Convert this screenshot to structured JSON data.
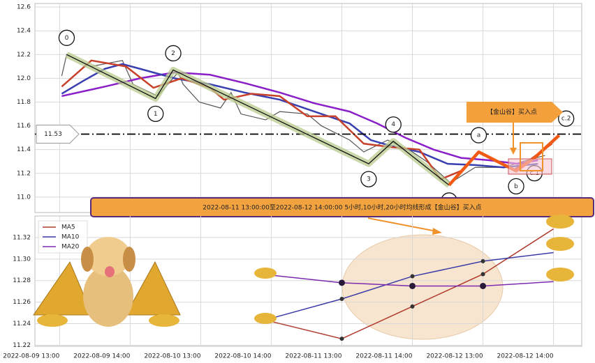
{
  "chart_data": [
    {
      "type": "line",
      "xlim": [
        -0.35,
        7.4
      ],
      "xticks": [
        0,
        1,
        2,
        3,
        4,
        5,
        6,
        7
      ],
      "ylim": [
        10.87,
        12.63
      ],
      "yticks": [
        {
          "value": 11,
          "label": "11.0"
        },
        11.2,
        11.4,
        11.6,
        11.8,
        {
          "value": 12,
          "label": "12.0"
        },
        12.2,
        12.4,
        12.6
      ],
      "grid": true,
      "series": [
        {
          "color": "#555555",
          "width": 1.2,
          "x": [
            0.03,
            0.1,
            0.45,
            0.89,
            1.04,
            1.39,
            1.68,
            1.75,
            1.98,
            2.28,
            2.43,
            2.57,
            2.92,
            3.12,
            3.51,
            3.71,
            4.11,
            4.31,
            4.65,
            5.0,
            5.2,
            5.54,
            5.89,
            6.29,
            6.68,
            6.88
          ],
          "values": [
            12.02,
            12.2,
            12.1,
            12.15,
            11.95,
            11.85,
            12.05,
            11.95,
            11.8,
            11.75,
            11.88,
            11.7,
            11.65,
            11.72,
            11.7,
            11.6,
            11.48,
            11.38,
            11.48,
            11.38,
            11.3,
            11.12,
            11.25,
            11.25,
            11.32,
            11.35
          ]
        },
        {
          "color": "#8a1fc8",
          "width": 2.5,
          "x": [
            0.03,
            0.64,
            1.14,
            1.63,
            2.13,
            2.62,
            3.12,
            3.61,
            4.11,
            4.5,
            4.9,
            5.3,
            5.69,
            6.09,
            6.49,
            6.78
          ],
          "values": [
            11.85,
            11.93,
            12.0,
            12.05,
            12.03,
            11.96,
            11.88,
            11.79,
            11.72,
            11.62,
            11.5,
            11.4,
            11.33,
            11.31,
            11.28,
            11.31
          ]
        },
        {
          "color": "#3a3fb0",
          "width": 2.5,
          "x": [
            0.03,
            0.34,
            0.64,
            0.89,
            1.14,
            1.63,
            2.13,
            2.62,
            3.12,
            3.61,
            4.11,
            4.41,
            4.7,
            5.1,
            5.5,
            5.89,
            6.29,
            6.78
          ],
          "values": [
            11.87,
            11.98,
            12.08,
            12.12,
            12.08,
            12.0,
            11.95,
            11.88,
            11.82,
            11.72,
            11.62,
            11.48,
            11.43,
            11.38,
            11.28,
            11.27,
            11.25,
            11.28
          ]
        },
        {
          "color": "#c8412b",
          "width": 2.5,
          "x": [
            0.03,
            0.45,
            0.94,
            1.33,
            1.73,
            2.13,
            2.33,
            2.72,
            3.12,
            3.51,
            3.91,
            4.31,
            4.7,
            5.1,
            5.4,
            5.69,
            5.94,
            6.19,
            6.44,
            6.68,
            6.98
          ],
          "values": [
            11.93,
            12.15,
            12.1,
            11.92,
            12.0,
            11.92,
            11.82,
            11.87,
            11.85,
            11.68,
            11.68,
            11.45,
            11.42,
            11.4,
            11.15,
            11.22,
            11.38,
            11.3,
            11.23,
            11.32,
            11.45
          ]
        }
      ],
      "waves": [
        {
          "label": "0",
          "x": 0.1,
          "y": 12.2
        },
        {
          "label": "1",
          "x": 1.36,
          "y": 11.83
        },
        {
          "label": "2",
          "x": 1.61,
          "y": 12.07
        },
        {
          "label": "3",
          "x": 4.38,
          "y": 11.28
        },
        {
          "label": "4",
          "x": 4.73,
          "y": 11.47
        },
        {
          "label": "5",
          "x": 5.52,
          "y": 11.1
        },
        {
          "label": "a",
          "x": 5.94,
          "y": 11.38
        },
        {
          "label": "b",
          "x": 6.47,
          "y": 11.22
        },
        {
          "label": "c.1",
          "x": 6.73,
          "y": 11.33
        },
        {
          "label": "c.2",
          "x": 7.08,
          "y": 11.52
        }
      ],
      "reference_line": {
        "value": 11.53,
        "color": "#000000"
      },
      "callout": "【金山谷】买入点",
      "annotation": "2022-08-11 13:00:00至2022-08-12 14:00:00 5小时,10小时,20小时均线形成【金山谷】买入点"
    },
    {
      "type": "line",
      "xlim": [
        -0.35,
        7.4
      ],
      "xticks": [
        {
          "value": 0,
          "label": "2022-08-09 13:00"
        },
        {
          "value": 1,
          "label": "2022-08-09 14:00"
        },
        {
          "value": 2,
          "label": "2022-08-10 13:00"
        },
        {
          "value": 3,
          "label": "2022-08-10 14:00"
        },
        {
          "value": 4,
          "label": "2022-08-11 13:00"
        },
        {
          "value": 5,
          "label": "2022-08-11 14:00"
        },
        {
          "value": 6,
          "label": "2022-08-12 13:00"
        },
        {
          "value": 7,
          "label": "2022-08-12 14:00"
        }
      ],
      "ylim": [
        11.219,
        11.34
      ],
      "yticks": [
        11.22,
        11.24,
        11.26,
        11.28,
        {
          "value": 11.3,
          "label": "11.30"
        },
        11.32
      ],
      "grid": true,
      "legend": "upper left",
      "series": [
        {
          "name": "MA5",
          "color": "#b03a2e",
          "x": [
            3,
            4,
            5,
            6,
            7
          ],
          "values": [
            11.242,
            11.226,
            11.256,
            11.286,
            11.328
          ]
        },
        {
          "name": "MA10",
          "color": "#3b3ba8",
          "x": [
            3,
            4,
            5,
            6,
            7
          ],
          "values": [
            11.245,
            11.263,
            11.284,
            11.298,
            11.306
          ]
        },
        {
          "name": "MA20",
          "color": "#7b2bb0",
          "x": [
            3,
            4,
            5,
            6,
            7
          ],
          "values": [
            11.285,
            11.278,
            11.275,
            11.275,
            11.279
          ]
        }
      ]
    }
  ]
}
